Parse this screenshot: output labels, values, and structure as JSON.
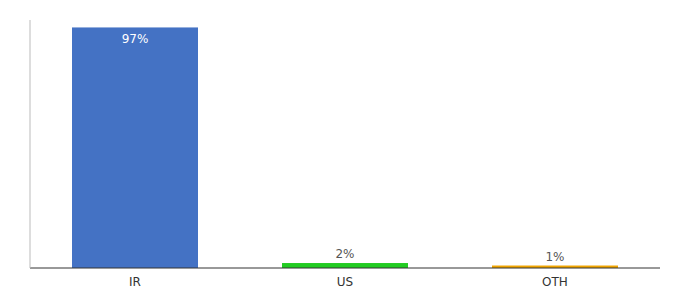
{
  "chart_data": {
    "type": "bar",
    "categories": [
      "IR",
      "US",
      "OTH"
    ],
    "values": [
      97,
      2,
      1
    ],
    "value_labels": [
      "97%",
      "2%",
      "1%"
    ],
    "colors": [
      "#4472c4",
      "#22cc22",
      "#f0a500"
    ],
    "ylim": [
      0,
      100
    ],
    "data_labels": true,
    "tick_labels": "x",
    "grid": false
  }
}
